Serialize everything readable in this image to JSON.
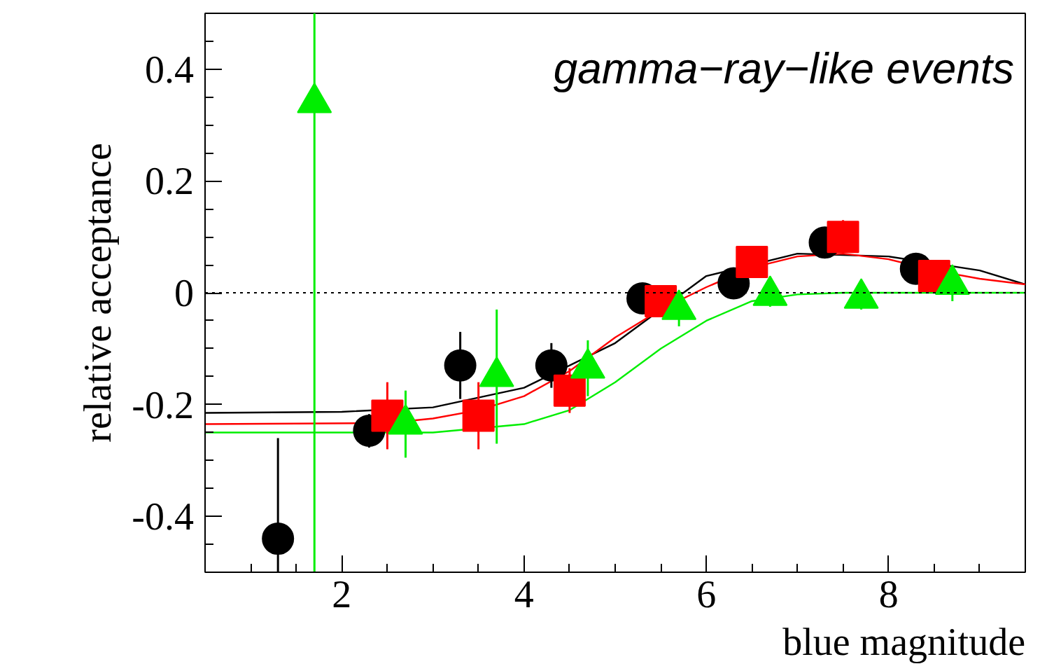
{
  "chart_data": {
    "type": "scatter",
    "xlabel": "blue magnitude",
    "ylabel": "relative acceptance",
    "annotations": [
      "gamma−ray−like events"
    ],
    "xlim": [
      0.5,
      9.5
    ],
    "ylim": [
      -0.5,
      0.5
    ],
    "xticks": [
      2,
      4,
      6,
      8
    ],
    "yticks": [
      -0.4,
      -0.2,
      0,
      0.2,
      0.4
    ],
    "grid": false,
    "ref_lines": [
      {
        "axis": "y",
        "value": 0,
        "color": "#000000",
        "line_style": "dotted"
      }
    ],
    "series": [
      {
        "marker": "circle",
        "color": "#000000",
        "x": [
          1.3,
          2.3,
          3.3,
          4.3,
          5.3,
          6.3,
          7.3,
          8.3
        ],
        "values": [
          -0.44,
          -0.247,
          -0.13,
          -0.13,
          -0.01,
          0.017,
          0.09,
          0.043
        ],
        "errors": [
          [
            -0.5,
            -0.26
          ],
          0.03,
          0.06,
          0.04,
          0.02,
          0.02,
          0.02,
          0.02
        ]
      },
      {
        "marker": "square",
        "color": "#ff0000",
        "x": [
          2.5,
          3.5,
          4.5,
          5.5,
          6.5,
          7.5,
          8.5
        ],
        "values": [
          -0.22,
          -0.22,
          -0.175,
          -0.015,
          0.055,
          0.1,
          0.03
        ],
        "errors": [
          0.06,
          0.06,
          0.04,
          0.02,
          0.02,
          0.03,
          0.02
        ]
      },
      {
        "marker": "triangle",
        "color": "#00ee00",
        "x": [
          1.7,
          2.7,
          3.7,
          4.7,
          5.7,
          6.7,
          7.7,
          8.7
        ],
        "values": [
          0.34,
          -0.235,
          -0.15,
          -0.135,
          -0.03,
          -0.005,
          -0.01,
          0.015
        ],
        "errors": [
          [
            -0.5,
            0.5
          ],
          0.06,
          0.12,
          0.05,
          0.03,
          0.02,
          0.02,
          0.03
        ]
      },
      {
        "type": "line",
        "color": "#000000",
        "x": [
          0.5,
          2,
          3,
          4,
          5,
          6,
          7,
          8,
          9,
          9.5
        ],
        "values": [
          -0.215,
          -0.213,
          -0.205,
          -0.17,
          -0.09,
          0.03,
          0.07,
          0.065,
          0.04,
          0.015
        ]
      },
      {
        "type": "line",
        "color": "#ff0000",
        "x": [
          0.5,
          2.5,
          3,
          3.5,
          4,
          4.5,
          5,
          5.5,
          6,
          6.5,
          7,
          7.5,
          8,
          8.5,
          9,
          9.5
        ],
        "values": [
          -0.235,
          -0.233,
          -0.225,
          -0.21,
          -0.185,
          -0.14,
          -0.08,
          -0.03,
          0.01,
          0.045,
          0.065,
          0.07,
          0.06,
          0.04,
          0.025,
          0.015
        ]
      },
      {
        "type": "line",
        "color": "#00ee00",
        "x": [
          0.5,
          3,
          4,
          4.5,
          5,
          5.5,
          6,
          6.5,
          7,
          7.5,
          9.5
        ],
        "values": [
          -0.25,
          -0.25,
          -0.235,
          -0.21,
          -0.16,
          -0.1,
          -0.05,
          -0.015,
          -0.003,
          0,
          0
        ]
      }
    ]
  }
}
